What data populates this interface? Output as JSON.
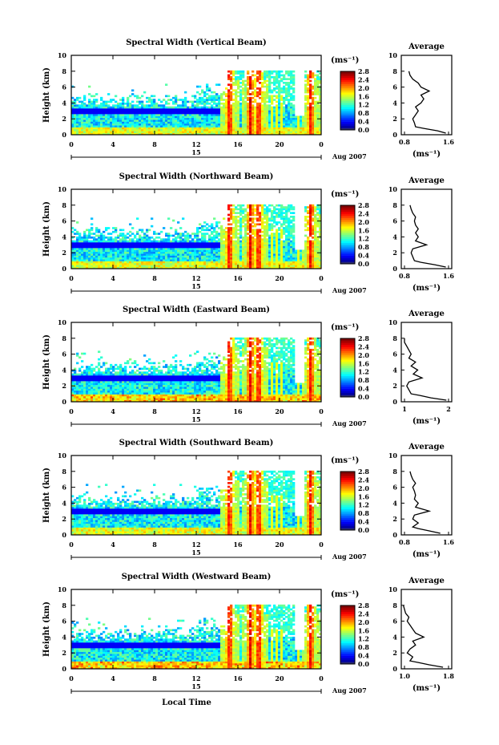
{
  "figure": {
    "xlabel": "Local Time",
    "colorbar_unit": "(ms⁻¹)",
    "colorbar_ticks": [
      "2.8",
      "2.4",
      "2.0",
      "1.6",
      "1.2",
      "0.8",
      "0.4",
      "0.0"
    ],
    "date_label": "Aug 2007",
    "day_label": "15",
    "avg_title": "Average",
    "avg_unit": "(ms⁻¹)"
  },
  "chart_data": [
    {
      "type": "heatmap",
      "title": "Spectral Width (Vertical Beam)",
      "ylabel": "Height (km)",
      "xlabel": "Local Time",
      "x_ticks": [
        "0",
        "4",
        "8",
        "12",
        "16",
        "20",
        "0"
      ],
      "y_ticks": [
        "0",
        "2",
        "4",
        "6",
        "8",
        "10"
      ],
      "xlim": [
        0,
        24
      ],
      "ylim": [
        0,
        10
      ],
      "colorbar": {
        "label": "(ms⁻¹)",
        "range": [
          0.0,
          2.8
        ]
      },
      "average_profile": {
        "xlim": [
          0.8,
          1.6
        ],
        "x_ticks": [
          "0.8",
          "1.6"
        ],
        "height_km": [
          0.2,
          0.5,
          0.8,
          1.0,
          1.5,
          2.0,
          2.5,
          3.0,
          3.5,
          4.0,
          4.5,
          5.0,
          5.5,
          6.0,
          6.5,
          7.0,
          7.5,
          8.0
        ],
        "values": [
          1.55,
          1.4,
          1.15,
          1.0,
          0.98,
          0.95,
          1.0,
          1.05,
          1.0,
          1.1,
          1.15,
          1.1,
          1.25,
          1.1,
          1.05,
          0.95,
          0.9,
          0.88
        ]
      }
    },
    {
      "type": "heatmap",
      "title": "Spectral Width (Northward Beam)",
      "ylabel": "Height (km)",
      "xlabel": "Local Time",
      "x_ticks": [
        "0",
        "4",
        "8",
        "12",
        "16",
        "20",
        "0"
      ],
      "y_ticks": [
        "0",
        "2",
        "4",
        "6",
        "8",
        "10"
      ],
      "xlim": [
        0,
        24
      ],
      "ylim": [
        0,
        10
      ],
      "colorbar": {
        "label": "(ms⁻¹)",
        "range": [
          0.0,
          2.8
        ]
      },
      "average_profile": {
        "xlim": [
          0.8,
          1.6
        ],
        "x_ticks": [
          "0.8",
          "1.6"
        ],
        "height_km": [
          0.2,
          0.5,
          0.8,
          1.0,
          1.5,
          2.0,
          2.5,
          3.0,
          3.5,
          4.0,
          4.5,
          5.0,
          5.5,
          6.0,
          6.5,
          7.0,
          7.5,
          8.0
        ],
        "values": [
          1.55,
          1.35,
          1.1,
          0.98,
          0.95,
          0.92,
          0.95,
          1.2,
          1.0,
          1.05,
          1.0,
          1.05,
          1.0,
          0.98,
          1.0,
          0.95,
          0.92,
          0.9
        ]
      }
    },
    {
      "type": "heatmap",
      "title": "Spectral Width (Eastward Beam)",
      "ylabel": "Height (km)",
      "xlabel": "Local Time",
      "x_ticks": [
        "0",
        "4",
        "8",
        "12",
        "16",
        "20",
        "0"
      ],
      "y_ticks": [
        "0",
        "2",
        "4",
        "6",
        "8",
        "10"
      ],
      "xlim": [
        0,
        24
      ],
      "ylim": [
        0,
        10
      ],
      "colorbar": {
        "label": "(ms⁻¹)",
        "range": [
          0.0,
          2.8
        ]
      },
      "average_profile": {
        "xlim": [
          1,
          2
        ],
        "x_ticks": [
          "1",
          "2"
        ],
        "height_km": [
          0.2,
          0.5,
          0.8,
          1.0,
          1.5,
          2.0,
          2.5,
          3.0,
          3.5,
          4.0,
          4.5,
          5.0,
          5.5,
          6.0,
          6.5,
          7.0,
          7.5,
          8.0
        ],
        "values": [
          1.95,
          1.6,
          1.35,
          1.15,
          1.1,
          1.05,
          1.1,
          1.4,
          1.2,
          1.3,
          1.15,
          1.25,
          1.1,
          1.15,
          1.1,
          1.05,
          1.0,
          1.0
        ]
      }
    },
    {
      "type": "heatmap",
      "title": "Spectral Width (Southward Beam)",
      "ylabel": "Height (km)",
      "xlabel": "Local Time",
      "x_ticks": [
        "0",
        "4",
        "8",
        "12",
        "16",
        "20",
        "0"
      ],
      "y_ticks": [
        "0",
        "2",
        "4",
        "6",
        "8",
        "10"
      ],
      "xlim": [
        0,
        24
      ],
      "ylim": [
        0,
        10
      ],
      "colorbar": {
        "label": "(ms⁻¹)",
        "range": [
          0.0,
          2.8
        ]
      },
      "average_profile": {
        "xlim": [
          0.8,
          1.6
        ],
        "x_ticks": [
          "0.8",
          "1.6"
        ],
        "height_km": [
          0.2,
          0.5,
          0.8,
          1.0,
          1.5,
          2.0,
          2.5,
          3.0,
          3.5,
          4.0,
          4.5,
          5.0,
          5.5,
          6.0,
          6.5,
          7.0,
          7.5,
          8.0
        ],
        "values": [
          1.45,
          1.25,
          1.05,
          0.95,
          1.05,
          0.95,
          0.98,
          1.25,
          1.0,
          1.05,
          0.98,
          1.0,
          0.98,
          0.95,
          1.0,
          0.95,
          0.92,
          0.9
        ]
      }
    },
    {
      "type": "heatmap",
      "title": "Spectral Width (Westward Beam)",
      "ylabel": "Height (km)",
      "xlabel": "Local Time",
      "x_ticks": [
        "0",
        "4",
        "8",
        "12",
        "16",
        "20",
        "0"
      ],
      "y_ticks": [
        "0",
        "2",
        "4",
        "6",
        "8",
        "10"
      ],
      "xlim": [
        0,
        24
      ],
      "ylim": [
        0,
        10
      ],
      "colorbar": {
        "label": "(ms⁻¹)",
        "range": [
          0.0,
          2.8
        ]
      },
      "average_profile": {
        "xlim": [
          1.0,
          1.8
        ],
        "x_ticks": [
          "1.0",
          "1.8"
        ],
        "height_km": [
          0.2,
          0.5,
          0.8,
          1.0,
          1.5,
          2.0,
          2.5,
          3.0,
          3.5,
          4.0,
          4.5,
          5.0,
          5.5,
          6.0,
          6.5,
          7.0,
          7.5,
          8.0
        ],
        "values": [
          1.7,
          1.45,
          1.25,
          1.1,
          1.15,
          1.05,
          1.1,
          1.2,
          1.15,
          1.35,
          1.2,
          1.15,
          1.1,
          1.05,
          1.08,
          1.02,
          1.0,
          0.98
        ]
      }
    }
  ]
}
